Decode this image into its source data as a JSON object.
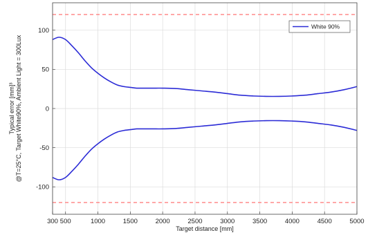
{
  "chart_data": {
    "type": "line",
    "xlabel": "Target distance [mm]",
    "ylabel_lines": [
      "@T=25°C, Target White90%, Ambient Light = 300Lux",
      "Typical error [mm]³"
    ],
    "xlim": [
      300,
      5000
    ],
    "ylim": [
      -135,
      135
    ],
    "xticks": [
      300,
      500,
      1000,
      1500,
      2000,
      2500,
      3000,
      3500,
      4000,
      4500,
      5000
    ],
    "yticks": [
      -100,
      -50,
      0,
      50,
      100
    ],
    "grid": true,
    "legend_position": "top-right",
    "series": [
      {
        "name": "White 90%",
        "color": "#2b2bd6",
        "x": [
          300,
          400,
          500,
          600,
          700,
          800,
          900,
          1000,
          1100,
          1200,
          1300,
          1400,
          1500,
          1600,
          1700,
          1800,
          1900,
          2000,
          2200,
          2400,
          2600,
          2800,
          3000,
          3200,
          3400,
          3600,
          3800,
          4000,
          4200,
          4400,
          4600,
          4800,
          5000
        ],
        "upper": [
          88,
          91,
          88,
          80,
          71,
          61,
          52,
          45,
          39,
          34,
          30,
          28,
          27,
          26,
          26,
          26,
          26,
          26,
          25.5,
          24,
          22.5,
          21,
          19,
          17,
          16,
          15.5,
          15.5,
          16,
          17,
          19,
          21,
          24,
          28
        ],
        "lower": [
          -88,
          -91,
          -88,
          -80,
          -71,
          -61,
          -52,
          -45,
          -39,
          -34,
          -30,
          -28,
          -27,
          -26,
          -26,
          -26,
          -26,
          -26,
          -25.5,
          -24,
          -22.5,
          -21,
          -19,
          -17,
          -16,
          -15.5,
          -15.5,
          -16,
          -17,
          -19,
          -21,
          -24,
          -28
        ]
      }
    ],
    "limits": {
      "values": [
        120,
        -120
      ],
      "color": "#ff8a8a"
    }
  }
}
